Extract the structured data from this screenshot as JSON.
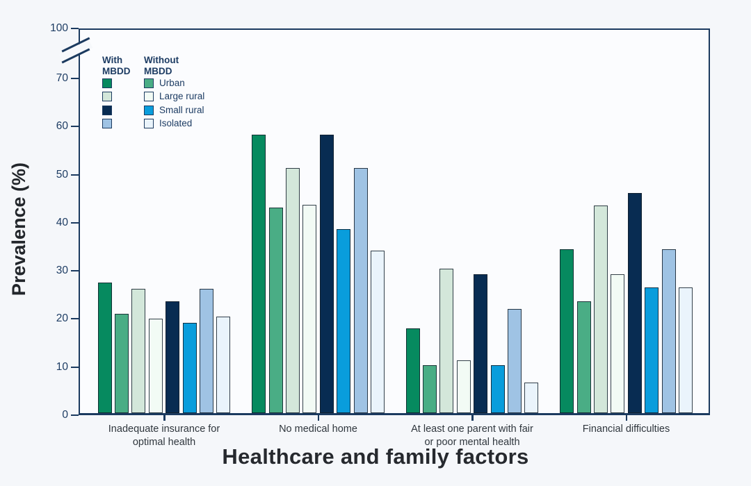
{
  "figure": {
    "y_axis_title": "Prevalence (%)",
    "x_axis_title": "Healthcare and family factors",
    "colors": {
      "axis": "#1b3a5f",
      "plot_background": "#fbfcfe",
      "page_background": "#f5f7fa",
      "tick_label": "#1d3c63",
      "category_label": "#2f363d",
      "title_text": "#26292e"
    }
  },
  "palette": {
    "with_urban": "#068a5f",
    "without_urban": "#4aad85",
    "with_large_rural": "#d3e7da",
    "without_large_rural": "#f2fbf5",
    "with_small_rural": "#082c52",
    "without_small_rural": "#099ddc",
    "with_isolated": "#9fc3e4",
    "without_isolated": "#eaf4fc"
  },
  "legend": {
    "col1_header": "With\nMBDD",
    "col2_header": "Without\nMBDD",
    "rows": [
      {
        "label": "Urban",
        "with_key": "with_urban",
        "without_key": "without_urban"
      },
      {
        "label": "Large rural",
        "with_key": "with_large_rural",
        "without_key": "without_large_rural"
      },
      {
        "label": "Small rural",
        "with_key": "with_small_rural",
        "without_key": "without_small_rural"
      },
      {
        "label": "Isolated",
        "with_key": "with_isolated",
        "without_key": "without_isolated"
      }
    ]
  },
  "chart_data": {
    "type": "bar",
    "title": "",
    "xlabel": "Healthcare and family factors",
    "ylabel": "Prevalence (%)",
    "ylim": [
      0,
      100
    ],
    "axis_break_between": [
      70,
      100
    ],
    "yticks": [
      0,
      10,
      20,
      30,
      40,
      50,
      60,
      70,
      100
    ],
    "grid": false,
    "legend_position": "top-left-inside",
    "categories": [
      "Inadequate insurance for optimal health",
      "No medical home",
      "At least one parent with fair or poor mental health",
      "Financial difficulties"
    ],
    "category_labels_wrapped": [
      "Inadequate insurance for\noptimal health",
      "No medical home",
      "At least one parent with fair\nor poor mental health",
      "Financial difficulties"
    ],
    "series": [
      {
        "name": "With MBDD – Urban",
        "color_key": "with_urban",
        "values": [
          27.1,
          57.9,
          17.6,
          34.1
        ]
      },
      {
        "name": "Without MBDD – Urban",
        "color_key": "without_urban",
        "values": [
          20.6,
          42.7,
          10.0,
          23.2
        ]
      },
      {
        "name": "With MBDD – Large rural",
        "color_key": "with_large_rural",
        "values": [
          25.9,
          50.9,
          30.0,
          43.1
        ]
      },
      {
        "name": "Without MBDD – Large rural",
        "color_key": "without_large_rural",
        "values": [
          19.6,
          43.3,
          11.0,
          28.8
        ]
      },
      {
        "name": "With MBDD – Small rural",
        "color_key": "with_small_rural",
        "values": [
          23.2,
          57.9,
          28.8,
          45.8
        ]
      },
      {
        "name": "Without MBDD – Small rural",
        "color_key": "without_small_rural",
        "values": [
          18.8,
          38.3,
          10.0,
          26.1
        ]
      },
      {
        "name": "With MBDD – Isolated",
        "color_key": "with_isolated",
        "values": [
          25.9,
          50.9,
          21.6,
          34.1
        ]
      },
      {
        "name": "Without MBDD – Isolated",
        "color_key": "without_isolated",
        "values": [
          20.0,
          33.8,
          6.3,
          26.1
        ]
      }
    ]
  }
}
